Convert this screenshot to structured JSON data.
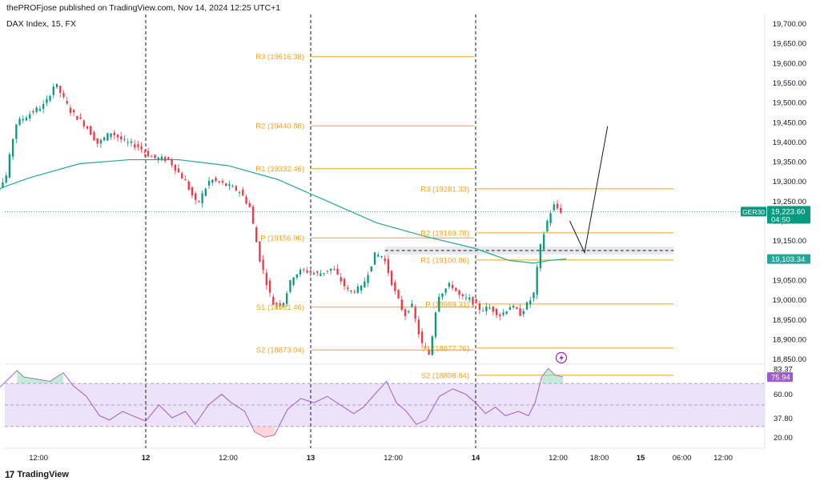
{
  "header": {
    "publisher": "thePROFjose published on TradingView.com, Nov 14, 2024 12:25 UTC+1",
    "symbol": "DAX Index, 15, FX"
  },
  "footer": {
    "brand": "TradingView",
    "logo": "17"
  },
  "colors": {
    "up": "#089981",
    "down": "#f23645",
    "pivot": "#f7a21b",
    "ema": "#26a69a",
    "rsi": "#9c5ccf",
    "rsi_band": "#ede3f9",
    "dashed": "#131722"
  },
  "chart_data": {
    "type": "candlestick",
    "symbol": "DAX Index",
    "interval": "15",
    "price_axis": {
      "ylim": [
        18800,
        19725
      ],
      "ticks": [
        18850,
        18900,
        18950,
        19000,
        19050,
        19100,
        19150,
        19200,
        19250,
        19300,
        19350,
        19400,
        19450,
        19500,
        19550,
        19600,
        19650,
        19700
      ],
      "tick_labels": [
        "18,850.00",
        "18,900.00",
        "18,950.00",
        "19,000.00",
        "19,050.00",
        "19,100.00",
        "19,150.00",
        "19,200.00",
        "19,250.00",
        "19,300.00",
        "19,350.00",
        "19,400.00",
        "19,450.00",
        "19,500.00",
        "19,550.00",
        "19,600.00",
        "19,650.00",
        "19,700.00"
      ]
    },
    "time_axis": {
      "ticks": [
        {
          "label": "12:00",
          "t": 0.35,
          "bold": false
        },
        {
          "label": "12",
          "t": 1.0,
          "bold": true
        },
        {
          "label": "12:00",
          "t": 1.5,
          "bold": false
        },
        {
          "label": "13",
          "t": 2.0,
          "bold": true
        },
        {
          "label": "12:00",
          "t": 2.5,
          "bold": false
        },
        {
          "label": "14",
          "t": 3.0,
          "bold": true
        },
        {
          "label": "12:00",
          "t": 3.5,
          "bold": false
        },
        {
          "label": "18:00",
          "t": 3.75,
          "bold": false
        },
        {
          "label": "15",
          "t": 4.0,
          "bold": true
        },
        {
          "label": "06:00",
          "t": 4.25,
          "bold": false
        },
        {
          "label": "12:00",
          "t": 4.5,
          "bold": false
        }
      ],
      "day_separators": [
        1.0,
        2.0,
        3.0
      ]
    },
    "price_path": [
      [
        0.0,
        19265
      ],
      [
        0.08,
        19272
      ],
      [
        0.16,
        19305
      ],
      [
        0.22,
        19445
      ],
      [
        0.3,
        19470
      ],
      [
        0.4,
        19495
      ],
      [
        0.46,
        19550
      ],
      [
        0.55,
        19480
      ],
      [
        0.65,
        19440
      ],
      [
        0.72,
        19395
      ],
      [
        0.8,
        19425
      ],
      [
        0.88,
        19400
      ],
      [
        0.96,
        19390
      ],
      [
        1.05,
        19360
      ],
      [
        1.15,
        19355
      ],
      [
        1.25,
        19300
      ],
      [
        1.32,
        19240
      ],
      [
        1.4,
        19305
      ],
      [
        1.5,
        19290
      ],
      [
        1.58,
        19275
      ],
      [
        1.64,
        19235
      ],
      [
        1.7,
        19105
      ],
      [
        1.78,
        18990
      ],
      [
        1.84,
        18990
      ],
      [
        1.9,
        19060
      ],
      [
        1.96,
        19075
      ],
      [
        2.06,
        19065
      ],
      [
        2.14,
        19080
      ],
      [
        2.24,
        19020
      ],
      [
        2.32,
        19030
      ],
      [
        2.4,
        19115
      ],
      [
        2.45,
        19110
      ],
      [
        2.52,
        19020
      ],
      [
        2.58,
        18960
      ],
      [
        2.62,
        18990
      ],
      [
        2.68,
        18890
      ],
      [
        2.73,
        18860
      ],
      [
        2.78,
        19010
      ],
      [
        2.86,
        19040
      ],
      [
        2.92,
        19005
      ],
      [
        2.98,
        19000
      ],
      [
        3.04,
        18975
      ],
      [
        3.1,
        18980
      ],
      [
        3.16,
        18960
      ],
      [
        3.22,
        18985
      ],
      [
        3.28,
        18965
      ],
      [
        3.36,
        19010
      ],
      [
        3.4,
        19130
      ],
      [
        3.44,
        19195
      ],
      [
        3.48,
        19240
      ],
      [
        3.53,
        19223.6
      ]
    ],
    "ema": {
      "name": "EMA",
      "points": [
        [
          0.0,
          19265
        ],
        [
          0.3,
          19310
        ],
        [
          0.6,
          19345
        ],
        [
          0.9,
          19355
        ],
        [
          1.2,
          19355
        ],
        [
          1.5,
          19340
        ],
        [
          1.8,
          19305
        ],
        [
          2.1,
          19250
        ],
        [
          2.4,
          19195
        ],
        [
          2.7,
          19160
        ],
        [
          3.0,
          19130
        ],
        [
          3.2,
          19100
        ],
        [
          3.35,
          19093
        ],
        [
          3.45,
          19100
        ],
        [
          3.55,
          19103.34
        ]
      ]
    },
    "pivots": [
      {
        "label": "R3 (19616.38)",
        "value": 19616.38,
        "t0": 2.0,
        "t1": 2.99
      },
      {
        "label": "R2 (19440.88)",
        "value": 19440.88,
        "t0": 2.0,
        "t1": 2.99
      },
      {
        "label": "R1 (19332.46)",
        "value": 19332.46,
        "t0": 2.0,
        "t1": 2.99
      },
      {
        "label": "P (19156.96)",
        "value": 19156.96,
        "t0": 2.0,
        "t1": 2.99
      },
      {
        "label": "S1 (18981.46)",
        "value": 18981.46,
        "t0": 2.0,
        "t1": 2.99
      },
      {
        "label": "S2 (18873.04)",
        "value": 18873.04,
        "t0": 2.0,
        "t1": 2.99
      },
      {
        "label": "R3 (19281.33)",
        "value": 19281.33,
        "t0": 3.0,
        "t1": 4.2
      },
      {
        "label": "R2 (19169.78)",
        "value": 19169.78,
        "t0": 3.0,
        "t1": 4.2
      },
      {
        "label": "R1 (19100.86)",
        "value": 19100.86,
        "t0": 3.0,
        "t1": 4.2
      },
      {
        "label": "P (18989.31)",
        "value": 18989.31,
        "t0": 3.0,
        "t1": 4.2
      },
      {
        "label": "S1 (18877.76)",
        "value": 18877.76,
        "t0": 3.0,
        "t1": 4.2
      },
      {
        "label": "S2 (18808.84)",
        "value": 18808.84,
        "t0": 3.0,
        "t1": 4.2
      }
    ],
    "zone": {
      "low": 19115,
      "high": 19135,
      "t0": 2.45,
      "t1": 4.2
    },
    "projection": [
      [
        3.57,
        19200
      ],
      [
        3.66,
        19120
      ],
      [
        3.8,
        19440
      ]
    ],
    "last_price": {
      "symbol": "GER30",
      "value": 19223.6,
      "label": "19,223.60",
      "countdown": "04:50"
    },
    "ema_last": {
      "value": 19103.34,
      "label": "19,103.34"
    },
    "rsi": {
      "ylim": [
        12,
        88
      ],
      "upper": 70,
      "lower": 30,
      "tick_labels": [
        {
          "label": "83.37",
          "v": 83.37
        },
        {
          "label": "60.00",
          "v": 60
        },
        {
          "label": "37.80",
          "v": 37.8
        },
        {
          "label": "20.00",
          "v": 20
        }
      ],
      "current": {
        "label": "75.94",
        "value": 75.94
      },
      "points": [
        [
          0.0,
          52
        ],
        [
          0.08,
          62
        ],
        [
          0.14,
          70
        ],
        [
          0.22,
          82
        ],
        [
          0.26,
          76
        ],
        [
          0.34,
          74
        ],
        [
          0.42,
          72
        ],
        [
          0.5,
          80
        ],
        [
          0.56,
          68
        ],
        [
          0.64,
          58
        ],
        [
          0.72,
          40
        ],
        [
          0.78,
          36
        ],
        [
          0.86,
          44
        ],
        [
          0.92,
          40
        ],
        [
          1.0,
          35
        ],
        [
          1.08,
          50
        ],
        [
          1.16,
          38
        ],
        [
          1.24,
          44
        ],
        [
          1.3,
          32
        ],
        [
          1.38,
          50
        ],
        [
          1.46,
          60
        ],
        [
          1.52,
          52
        ],
        [
          1.6,
          44
        ],
        [
          1.66,
          25
        ],
        [
          1.72,
          20
        ],
        [
          1.78,
          22
        ],
        [
          1.86,
          46
        ],
        [
          1.94,
          56
        ],
        [
          2.02,
          52
        ],
        [
          2.1,
          58
        ],
        [
          2.18,
          50
        ],
        [
          2.26,
          42
        ],
        [
          2.32,
          48
        ],
        [
          2.4,
          62
        ],
        [
          2.46,
          72
        ],
        [
          2.52,
          52
        ],
        [
          2.58,
          44
        ],
        [
          2.64,
          32
        ],
        [
          2.7,
          36
        ],
        [
          2.78,
          58
        ],
        [
          2.86,
          65
        ],
        [
          2.94,
          60
        ],
        [
          3.0,
          52
        ],
        [
          3.06,
          42
        ],
        [
          3.12,
          48
        ],
        [
          3.18,
          40
        ],
        [
          3.26,
          44
        ],
        [
          3.32,
          40
        ],
        [
          3.36,
          52
        ],
        [
          3.4,
          76
        ],
        [
          3.44,
          84
        ],
        [
          3.48,
          78
        ],
        [
          3.53,
          75.94
        ]
      ]
    }
  }
}
